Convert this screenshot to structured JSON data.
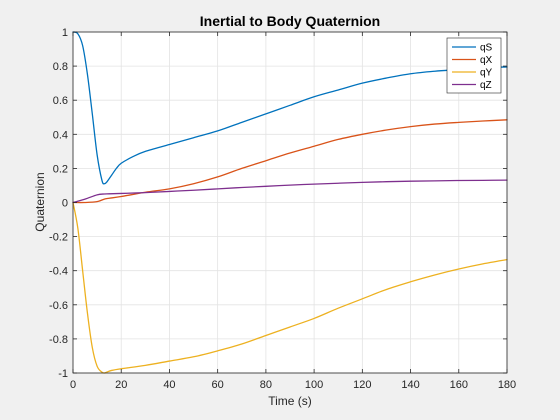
{
  "chart_data": {
    "type": "line",
    "title": "Inertial to Body Quaternion",
    "xlabel": "Time (s)",
    "ylabel": "Quaternion",
    "xlim": [
      0,
      180
    ],
    "ylim": [
      -1,
      1
    ],
    "xticks": [
      0,
      20,
      40,
      60,
      80,
      100,
      120,
      140,
      160,
      180
    ],
    "yticks": [
      -1,
      -0.8,
      -0.6,
      -0.4,
      -0.2,
      0,
      0.2,
      0.4,
      0.6,
      0.8,
      1
    ],
    "grid": true,
    "legend_position": "top-right",
    "series": [
      {
        "name": "qS",
        "color": "#0072BD",
        "x": [
          0,
          2,
          4,
          6,
          8,
          10,
          12,
          13,
          14,
          16,
          18,
          20,
          25,
          30,
          40,
          50,
          60,
          70,
          80,
          90,
          100,
          110,
          120,
          130,
          140,
          150,
          160,
          170,
          180
        ],
        "y": [
          1,
          0.99,
          0.92,
          0.75,
          0.52,
          0.28,
          0.13,
          0.11,
          0.12,
          0.16,
          0.2,
          0.23,
          0.27,
          0.3,
          0.34,
          0.38,
          0.42,
          0.47,
          0.52,
          0.57,
          0.62,
          0.66,
          0.7,
          0.73,
          0.755,
          0.77,
          0.78,
          0.79,
          0.795
        ]
      },
      {
        "name": "qX",
        "color": "#D95319",
        "x": [
          0,
          5,
          10,
          13,
          15,
          20,
          30,
          40,
          50,
          60,
          70,
          80,
          90,
          100,
          110,
          120,
          130,
          140,
          150,
          160,
          170,
          180
        ],
        "y": [
          0,
          0,
          0.005,
          0.02,
          0.025,
          0.035,
          0.06,
          0.08,
          0.11,
          0.15,
          0.2,
          0.245,
          0.29,
          0.33,
          0.37,
          0.4,
          0.425,
          0.445,
          0.46,
          0.47,
          0.478,
          0.485
        ]
      },
      {
        "name": "qY",
        "color": "#EDB120",
        "x": [
          0,
          2,
          4,
          6,
          8,
          10,
          12,
          13,
          14,
          16,
          20,
          30,
          40,
          50,
          60,
          70,
          80,
          90,
          100,
          110,
          120,
          130,
          140,
          150,
          160,
          170,
          180
        ],
        "y": [
          0,
          -0.15,
          -0.4,
          -0.65,
          -0.85,
          -0.96,
          -0.995,
          -1.0,
          -0.995,
          -0.985,
          -0.975,
          -0.955,
          -0.93,
          -0.905,
          -0.87,
          -0.83,
          -0.78,
          -0.73,
          -0.68,
          -0.62,
          -0.565,
          -0.51,
          -0.465,
          -0.425,
          -0.39,
          -0.36,
          -0.335
        ]
      },
      {
        "name": "qZ",
        "color": "#7E2F8E",
        "x": [
          0,
          5,
          10,
          13,
          15,
          20,
          30,
          40,
          50,
          60,
          70,
          80,
          90,
          100,
          110,
          120,
          130,
          140,
          150,
          160,
          170,
          180
        ],
        "y": [
          0,
          0.02,
          0.045,
          0.05,
          0.051,
          0.053,
          0.058,
          0.065,
          0.072,
          0.08,
          0.088,
          0.095,
          0.102,
          0.108,
          0.113,
          0.118,
          0.122,
          0.125,
          0.127,
          0.129,
          0.13,
          0.131
        ]
      }
    ]
  }
}
